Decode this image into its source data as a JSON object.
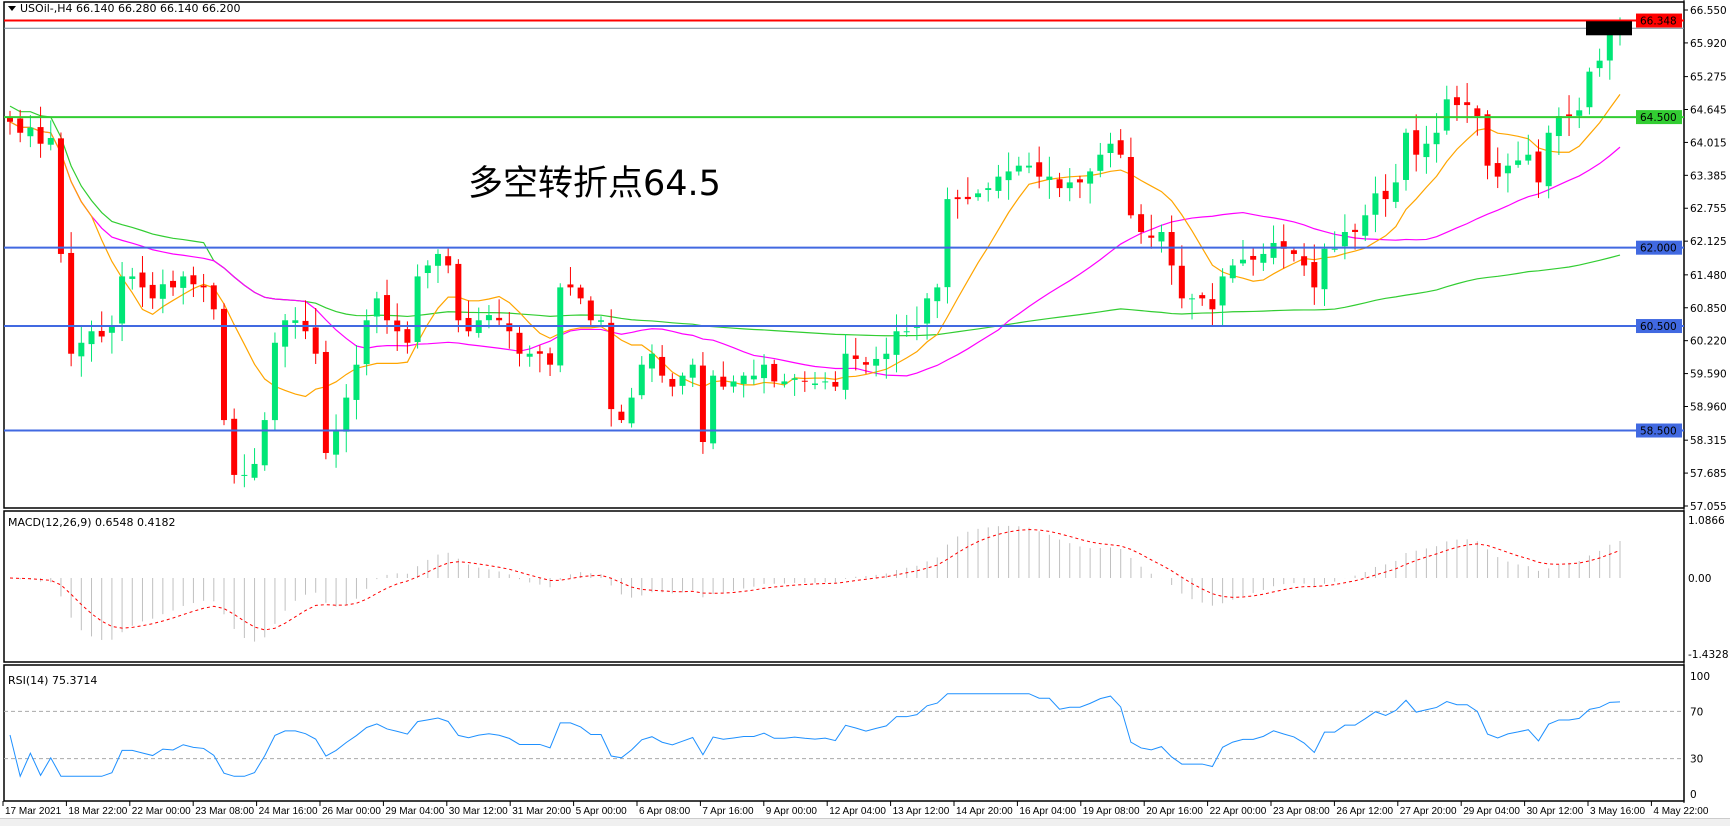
{
  "chart_data": [
    {
      "type": "candlestick",
      "title": "USOil-,H4  66.140 66.280 66.140 66.200",
      "symbol": "USOil-,H4",
      "ohlc_last": [
        "66.140",
        "66.280",
        "66.140",
        "66.200"
      ],
      "annotation": "多空转折点64.5",
      "annotation_color": "#ff0000",
      "ylim": [
        57.055,
        66.55
      ],
      "y_ticks": [
        "66.550",
        "65.920",
        "65.275",
        "64.645",
        "64.015",
        "63.385",
        "62.755",
        "62.125",
        "61.480",
        "60.850",
        "60.220",
        "59.590",
        "58.960",
        "58.315",
        "57.685",
        "57.055"
      ],
      "y_tick_values": [
        66.55,
        65.92,
        65.275,
        64.645,
        64.015,
        63.385,
        62.755,
        62.125,
        61.48,
        60.85,
        60.22,
        59.59,
        58.96,
        58.315,
        57.685,
        57.055
      ],
      "x_ticks": [
        "17 Mar 2021",
        "18 Mar 22:00",
        "22 Mar 00:00",
        "23 Mar 08:00",
        "24 Mar 16:00",
        "26 Mar 00:00",
        "29 Mar 04:00",
        "30 Mar 12:00",
        "31 Mar 20:00",
        "5 Apr 00:00",
        "6 Apr 08:00",
        "7 Apr 16:00",
        "9 Apr 00:00",
        "12 Apr 04:00",
        "13 Apr 12:00",
        "14 Apr 20:00",
        "16 Apr 04:00",
        "19 Apr 08:00",
        "20 Apr 16:00",
        "22 Apr 00:00",
        "23 Apr 08:00",
        "26 Apr 12:00",
        "27 Apr 20:00",
        "29 Apr 04:00",
        "30 Apr 12:00",
        "3 May 16:00",
        "4 May 22:00"
      ],
      "horizontal_lines": [
        {
          "value": 66.348,
          "label": "66.348",
          "color": "#ff0000"
        },
        {
          "value": 66.2,
          "label": "66.200",
          "color": "#778899"
        },
        {
          "value": 64.5,
          "label": "64.500",
          "color": "#32cd32"
        },
        {
          "value": 62.0,
          "label": "62.000",
          "color": "#4169e1"
        },
        {
          "value": 60.5,
          "label": "60.500",
          "color": "#4169e1"
        },
        {
          "value": 58.5,
          "label": "58.500",
          "color": "#4169e1"
        }
      ],
      "colors": {
        "bull": "#00e676",
        "bear": "#ff0000",
        "ma_fast": "#ffa500",
        "ma_mid": "#ff00ff",
        "ma_slow": "#32cd32"
      },
      "close": [
        64.41,
        64.2,
        64.3,
        63.99,
        64.1,
        61.88,
        59.97,
        60.18,
        60.4,
        60.3,
        60.5,
        61.45,
        61.45,
        61.24,
        61.03,
        61.3,
        61.24,
        61.45,
        61.3,
        61.24,
        60.82,
        58.7,
        57.65,
        57.65,
        57.86,
        58.7,
        60.18,
        60.61,
        60.61,
        60.4,
        59.97,
        58.07,
        58.49,
        59.13,
        59.76,
        60.61,
        61.03,
        60.61,
        60.4,
        60.18,
        61.45,
        61.66,
        61.88,
        61.66,
        60.61,
        60.4,
        60.61,
        60.71,
        60.61,
        60.4,
        59.97,
        59.97,
        59.97,
        59.76,
        61.24,
        61.24,
        61.03,
        60.61,
        60.61,
        58.91,
        58.7,
        59.13,
        59.76,
        59.97,
        59.55,
        59.34,
        59.55,
        59.76,
        58.28,
        59.55,
        59.34,
        59.44,
        59.55,
        59.55,
        59.76,
        59.44,
        59.44,
        59.5,
        59.44,
        59.4,
        59.44,
        59.34,
        59.97,
        59.87,
        59.76,
        59.87,
        59.97,
        60.4,
        60.4,
        60.5,
        61.03,
        61.24,
        62.93,
        62.93,
        62.93,
        63.04,
        63.14,
        63.36,
        63.46,
        63.57,
        63.57,
        63.36,
        63.36,
        63.14,
        63.25,
        63.25,
        63.46,
        63.78,
        63.99,
        63.78,
        62.62,
        62.3,
        62.19,
        62.3,
        61.66,
        61.03,
        61.03,
        61.03,
        60.82,
        61.45,
        61.66,
        61.77,
        61.77,
        61.88,
        62.09,
        61.98,
        61.88,
        61.66,
        61.24,
        61.98,
        61.98,
        62.3,
        62.3,
        62.62,
        63.04,
        62.93,
        63.25,
        64.2,
        63.78,
        63.99,
        64.2,
        64.84,
        64.73,
        64.73,
        64.52,
        63.57,
        63.36,
        63.57,
        63.67,
        63.78,
        63.25,
        64.2,
        64.52,
        64.52,
        64.63,
        65.37,
        65.58,
        66.15,
        66.2
      ]
    },
    {
      "type": "bar+line",
      "title": "MACD(12,26,9) 0.6548 0.4182",
      "ylim": [
        -1.4328,
        1.0866
      ],
      "y_ticks": [
        "1.0866",
        "0.00",
        "-1.4328"
      ],
      "y_tick_values": [
        1.0866,
        0,
        -1.4328
      ],
      "colors": {
        "histogram": "#c0c0c0",
        "signal": "#ff0000"
      }
    },
    {
      "type": "line",
      "title": "RSI(14) 75.3714",
      "ylim": [
        0,
        100
      ],
      "y_ticks": [
        "100",
        "70",
        "30",
        "0"
      ],
      "y_tick_values": [
        100,
        70,
        30,
        0
      ],
      "levels": [
        70,
        30
      ],
      "colors": {
        "line": "#1e90ff"
      }
    }
  ]
}
